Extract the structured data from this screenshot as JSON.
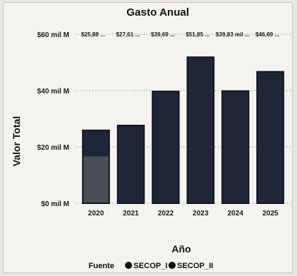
{
  "chart_data": {
    "type": "bar",
    "title": "Gasto Anual",
    "xlabel": "Año",
    "ylabel": "Valor Total",
    "categories": [
      "2020",
      "2021",
      "2022",
      "2023",
      "2024",
      "2025"
    ],
    "y_ticks": [
      {
        "value": 0,
        "label": "$0 mil M"
      },
      {
        "value": 20,
        "label": "$20 mil M"
      },
      {
        "value": 40,
        "label": "$40 mil M"
      },
      {
        "value": 60,
        "label": "$60 mil M"
      }
    ],
    "ylim": [
      0,
      60
    ],
    "grid": true,
    "stacked": true,
    "series": [
      {
        "name": "SECOP_I",
        "values": [
          16.5,
          0,
          0,
          0,
          0,
          0
        ],
        "color": "#4a4e57"
      },
      {
        "name": "SECOP_II",
        "values": [
          9.38,
          27.61,
          39.69,
          51.85,
          39.83,
          46.69
        ],
        "color": "#1e2638"
      }
    ],
    "data_labels": [
      "$25,88 ...",
      "$27,61 ...",
      "$39,69 ...",
      "$51,85 ...",
      "$39,83 mil ...",
      "$46,69 ..."
    ],
    "legend": {
      "title": "Fuente",
      "placement": "bottom"
    },
    "colors": {
      "bar_outline": "#11151d",
      "grid": "#9a9a9a"
    }
  }
}
